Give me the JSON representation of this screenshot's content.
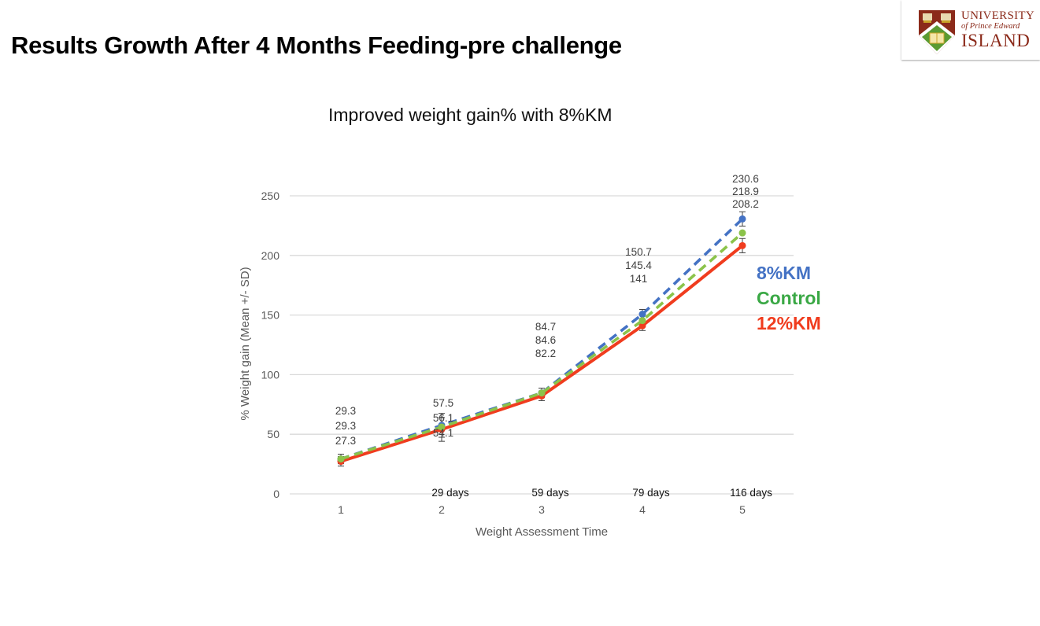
{
  "slide": {
    "title": "Results Growth After 4 Months Feeding-pre challenge"
  },
  "logo": {
    "icon": "upei-crest-icon",
    "line1": "UNIVERSITY",
    "line2": "of Prince Edward",
    "line3": "ISLAND"
  },
  "chart_data": {
    "type": "line",
    "title": "Improved weight gain% with 8%KM",
    "xlabel": "Weight Assessment Time",
    "ylabel": "% Weight gain (Mean +/- SD)",
    "x": [
      1,
      2,
      3,
      4,
      5
    ],
    "x_tick_labels": [
      "1",
      "2",
      "3",
      "4",
      "5"
    ],
    "x_annotations": [
      "",
      "29 days",
      "59 days",
      "79 days",
      "116 days"
    ],
    "ylim": [
      0,
      250
    ],
    "y_ticks": [
      0,
      50,
      100,
      150,
      200,
      250
    ],
    "grid": "horizontal",
    "legend_placement": "right",
    "series": [
      {
        "name": "8%KM",
        "color": "#4472c4",
        "style": "dashed",
        "values": [
          29.3,
          57.5,
          84.7,
          150.7,
          230.6
        ],
        "labels": [
          "29.3",
          "57.5",
          "84.7",
          "150.7",
          "230.6"
        ]
      },
      {
        "name": "Control",
        "color": "#8bc34a",
        "style": "dashed",
        "values": [
          29.3,
          56.1,
          84.6,
          145.4,
          218.9
        ],
        "labels": [
          "29.3",
          "56.1",
          "84.6",
          "145.4",
          "218.9"
        ]
      },
      {
        "name": "12%KM",
        "color": "#f03c1e",
        "style": "solid",
        "values": [
          27.3,
          54.1,
          82.2,
          141,
          208.2
        ],
        "labels": [
          "27.3",
          "54.1",
          "82.2",
          "141",
          "208.2"
        ]
      }
    ],
    "error_bars": {
      "note": "SD error bars shown at each point",
      "approx_sd": [
        4,
        10,
        4,
        4,
        6
      ]
    }
  },
  "legend": {
    "items": [
      {
        "label": "8%KM",
        "color": "#4472c4"
      },
      {
        "label": "Control",
        "color": "#3aa845"
      },
      {
        "label": "12%KM",
        "color": "#f03c1e"
      }
    ]
  }
}
